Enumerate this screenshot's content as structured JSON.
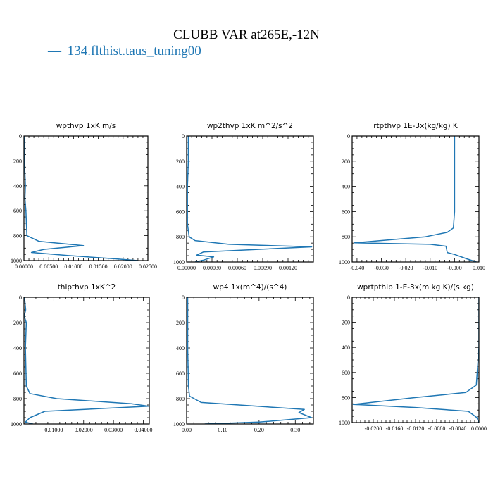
{
  "title": "CLUBB VAR at265E,-12N",
  "legend": {
    "dash": "—",
    "label": "134.flthist.taus_tuning00",
    "color": "#1f77b4"
  },
  "chart_data": [
    {
      "type": "line",
      "title": "wpthvp  1xK m/s",
      "xlim": [
        0,
        0.025
      ],
      "ylim": [
        0,
        1000
      ],
      "y_inverted": true,
      "xticks": [
        0,
        0.005,
        0.01,
        0.015,
        0.02,
        0.025
      ],
      "xtick_labels": [
        "0.00000",
        "0.00500",
        "0.01000",
        "0.01500",
        "0.02000",
        "0.02500"
      ],
      "yticks": [
        0,
        200,
        400,
        600,
        800,
        1000
      ],
      "ytick_labels": [
        "0",
        "200",
        "400",
        "600",
        "800",
        "1000"
      ],
      "series": [
        {
          "color": "#1f77b4",
          "x": [
            0,
            0.0002,
            0.0001,
            0.0002,
            0.0003,
            0.0002,
            0.0004,
            0.0006,
            0.003,
            0.012,
            0.004,
            0.0015,
            0.009,
            0.018,
            0.023
          ],
          "y": [
            0,
            100,
            200,
            300,
            400,
            500,
            600,
            800,
            845,
            880,
            910,
            935,
            960,
            985,
            1000
          ]
        }
      ]
    },
    {
      "type": "line",
      "title": "wp2thvp  1xK m^2/s^2",
      "xlim": [
        0,
        0.0015
      ],
      "ylim": [
        0,
        1000
      ],
      "y_inverted": true,
      "xticks": [
        0,
        0.0003,
        0.0006,
        0.0009,
        0.0012
      ],
      "xtick_labels": [
        "0.00000",
        "0.00030",
        "0.00060",
        "0.00090",
        "0.00120"
      ],
      "yticks": [
        0,
        200,
        400,
        600,
        800,
        1000
      ],
      "ytick_labels": [
        "0",
        "200",
        "400",
        "600",
        "800",
        "1000"
      ],
      "series": [
        {
          "color": "#1f77b4",
          "x": [
            2e-05,
            2e-05,
            1e-05,
            1e-05,
            3e-05,
            0.0001,
            0.0005,
            0.00148,
            0.0002,
            0.00012,
            0.00032,
            0.0002,
            0.0001
          ],
          "y": [
            0,
            200,
            400,
            700,
            800,
            830,
            860,
            880,
            920,
            945,
            960,
            985,
            1000
          ]
        }
      ]
    },
    {
      "type": "line",
      "title": "rtpthvp  1E-3x(kg/kg) K",
      "xlim": [
        -0.042,
        0.01
      ],
      "ylim": [
        0,
        1000
      ],
      "y_inverted": true,
      "xticks": [
        -0.04,
        -0.03,
        -0.02,
        -0.01,
        0,
        0.01
      ],
      "xtick_labels": [
        "-0.040",
        "-0.030",
        "-0.020",
        "-0.010",
        "-0.000",
        "0.010"
      ],
      "yticks": [
        0,
        200,
        400,
        600,
        800,
        1000
      ],
      "ytick_labels": [
        "0",
        "200",
        "400",
        "600",
        "800",
        "1000"
      ],
      "series": [
        {
          "color": "#1f77b4",
          "x": [
            0,
            0,
            -0.0005,
            -0.003,
            -0.012,
            -0.041,
            -0.01,
            -0.0035,
            -0.003,
            0,
            0.005,
            0.009
          ],
          "y": [
            0,
            600,
            730,
            765,
            800,
            848,
            860,
            875,
            925,
            940,
            975,
            1000
          ]
        }
      ]
    },
    {
      "type": "line",
      "title": "thlpthvp  1xK^2",
      "xlim": [
        0,
        0.042
      ],
      "ylim": [
        0,
        1000
      ],
      "y_inverted": true,
      "xticks": [
        0.01,
        0.02,
        0.03,
        0.04
      ],
      "xtick_labels": [
        "0.01000",
        "0.02000",
        "0.03000",
        "0.04000"
      ],
      "yticks": [
        0,
        200,
        400,
        600,
        800,
        1000
      ],
      "ytick_labels": [
        "0",
        "200",
        "400",
        "600",
        "800",
        "1000"
      ],
      "series": [
        {
          "color": "#1f77b4",
          "x": [
            0.0002,
            0.0006,
            0.0001,
            0.0008,
            0.0005,
            0.0008,
            0.002,
            0.011,
            0.036,
            0.0418,
            0.007,
            0.002,
            0.0005,
            0.003
          ],
          "y": [
            0,
            100,
            150,
            200,
            400,
            700,
            760,
            800,
            840,
            860,
            900,
            950,
            985,
            1000
          ]
        }
      ]
    },
    {
      "type": "line",
      "title": "wp4  1x(m^4)/(s^4)",
      "xlim": [
        0,
        0.35
      ],
      "ylim": [
        0,
        1000
      ],
      "y_inverted": true,
      "xticks": [
        0,
        0.1,
        0.2,
        0.3
      ],
      "xtick_labels": [
        "0.00",
        "0.10",
        "0.20",
        "0.30"
      ],
      "yticks": [
        0,
        200,
        400,
        600,
        800,
        1000
      ],
      "ytick_labels": [
        "0",
        "200",
        "400",
        "600",
        "800",
        "1000"
      ],
      "series": [
        {
          "color": "#1f77b4",
          "x": [
            0.003,
            0.003,
            0.005,
            0.008,
            0.04,
            0.17,
            0.325,
            0.31,
            0.345,
            0.2,
            0.05
          ],
          "y": [
            0,
            400,
            700,
            780,
            830,
            855,
            885,
            910,
            950,
            985,
            1000
          ]
        }
      ]
    },
    {
      "type": "line",
      "title": "wprtpthlp  1-E-3x(m kg K)/(s kg)",
      "xlim": [
        -0.024,
        0
      ],
      "ylim": [
        0,
        1000
      ],
      "y_inverted": true,
      "xticks": [
        -0.02,
        -0.016,
        -0.012,
        -0.008,
        -0.004,
        0
      ],
      "xtick_labels": [
        "-0.0200",
        "-0.0160",
        "-0.0120",
        "-0.0080",
        "-0.0040",
        "0.0000"
      ],
      "yticks": [
        0,
        200,
        400,
        600,
        800,
        1000
      ],
      "ytick_labels": [
        "0",
        "200",
        "400",
        "600",
        "800",
        "1000"
      ],
      "series": [
        {
          "color": "#1f77b4",
          "x": [
            0,
            0,
            -0.0005,
            -0.0025,
            -0.012,
            -0.0238,
            -0.012,
            -0.002,
            -0.0004,
            0
          ],
          "y": [
            0,
            400,
            700,
            760,
            800,
            855,
            880,
            910,
            960,
            1000
          ]
        }
      ]
    }
  ]
}
